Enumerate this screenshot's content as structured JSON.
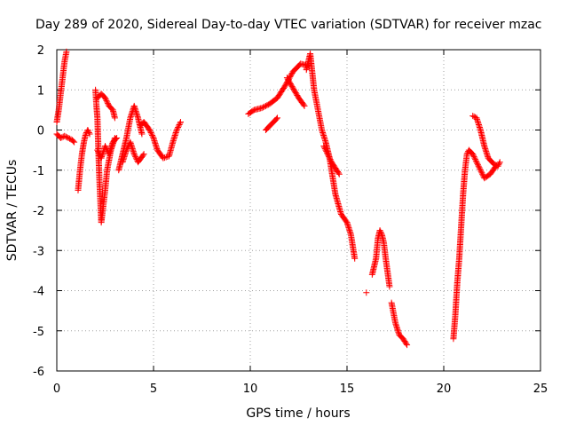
{
  "chart_data": {
    "type": "scatter",
    "title": "Day 289 of 2020, Sidereal Day-to-day VTEC variation (SDTVAR) for receiver mzac",
    "xlabel": "GPS time / hours",
    "ylabel": "SDTVAR / TECUs",
    "xlim": [
      0,
      25
    ],
    "ylim": [
      -6,
      2
    ],
    "x_ticks": [
      0,
      5,
      10,
      15,
      20,
      25
    ],
    "y_ticks": [
      -6,
      -5,
      -4,
      -3,
      -2,
      -1,
      0,
      1,
      2
    ],
    "grid": true,
    "marker": "+",
    "color": "#ff0000",
    "series": [
      {
        "name": "SDTVAR",
        "segments": [
          {
            "x": [
              0.0,
              0.1,
              0.2,
              0.3,
              0.4,
              0.5
            ],
            "y": [
              0.2,
              0.5,
              0.9,
              1.3,
              1.7,
              1.95
            ]
          },
          {
            "x": [
              0.0,
              0.2,
              0.4,
              0.6,
              0.8,
              0.9
            ],
            "y": [
              -0.1,
              -0.2,
              -0.15,
              -0.2,
              -0.25,
              -0.3
            ]
          },
          {
            "x": [
              1.1,
              1.2,
              1.3,
              1.4,
              1.5,
              1.6,
              1.7
            ],
            "y": [
              -1.5,
              -1.0,
              -0.6,
              -0.3,
              -0.1,
              0.0,
              -0.1
            ]
          },
          {
            "x": [
              2.0,
              2.05,
              2.1,
              2.15,
              2.2,
              2.3,
              2.4,
              2.5,
              2.6,
              2.8,
              3.0
            ],
            "y": [
              1.0,
              0.6,
              0.3,
              -0.5,
              -1.2,
              -2.3,
              -1.9,
              -1.5,
              -1.0,
              -0.5,
              -0.2
            ]
          },
          {
            "x": [
              2.1,
              2.3,
              2.5,
              2.7,
              2.9,
              3.0
            ],
            "y": [
              0.8,
              0.9,
              0.8,
              0.6,
              0.5,
              0.3
            ]
          },
          {
            "x": [
              2.1,
              2.3,
              2.5,
              2.7,
              2.9,
              3.1
            ],
            "y": [
              -0.5,
              -0.7,
              -0.4,
              -0.6,
              -0.3,
              -0.2
            ]
          },
          {
            "x": [
              3.2,
              3.4,
              3.6,
              3.8,
              4.0,
              4.2,
              4.4
            ],
            "y": [
              -1.0,
              -0.6,
              -0.2,
              0.3,
              0.6,
              0.3,
              -0.1
            ]
          },
          {
            "x": [
              3.4,
              3.6,
              3.8,
              4.0,
              4.2,
              4.5
            ],
            "y": [
              -0.8,
              -0.5,
              -0.3,
              -0.6,
              -0.8,
              -0.6
            ]
          },
          {
            "x": [
              4.3,
              4.5,
              4.8,
              5.0,
              5.2,
              5.5,
              5.8,
              6.0,
              6.2,
              6.4
            ],
            "y": [
              0.1,
              0.2,
              0.0,
              -0.2,
              -0.5,
              -0.7,
              -0.65,
              -0.3,
              0.0,
              0.2
            ]
          },
          {
            "x": [
              9.9,
              10.2,
              10.6,
              11.0,
              11.4,
              11.8,
              12.2,
              12.6,
              13.0
            ],
            "y": [
              0.4,
              0.5,
              0.55,
              0.65,
              0.8,
              1.1,
              1.45,
              1.65,
              1.6
            ]
          },
          {
            "x": [
              10.8,
              11.0,
              11.2,
              11.4
            ],
            "y": [
              0.0,
              0.1,
              0.2,
              0.3
            ]
          },
          {
            "x": [
              11.9,
              12.2,
              12.5,
              12.8
            ],
            "y": [
              1.3,
              1.05,
              0.8,
              0.6
            ]
          },
          {
            "x": [
              12.9,
              13.1,
              13.3,
              13.5,
              13.7,
              13.9,
              14.1,
              14.4,
              14.7,
              15.0,
              15.2,
              15.4
            ],
            "y": [
              1.5,
              1.9,
              1.0,
              0.5,
              0.0,
              -0.3,
              -0.7,
              -1.6,
              -2.1,
              -2.3,
              -2.6,
              -3.2
            ]
          },
          {
            "x": [
              13.8,
              14.0,
              14.2,
              14.4,
              14.6
            ],
            "y": [
              -0.4,
              -0.6,
              -0.8,
              -0.95,
              -1.1
            ]
          },
          {
            "x": [
              16.0
            ],
            "y": [
              -4.05
            ]
          },
          {
            "x": [
              16.3,
              16.5,
              16.6,
              16.7,
              16.8,
              16.9,
              17.0,
              17.2
            ],
            "y": [
              -3.6,
              -3.2,
              -2.7,
              -2.5,
              -2.6,
              -2.8,
              -3.2,
              -3.9
            ]
          },
          {
            "x": [
              17.3,
              17.5,
              17.7,
              17.9,
              18.1
            ],
            "y": [
              -4.3,
              -4.8,
              -5.1,
              -5.2,
              -5.35
            ]
          },
          {
            "x": [
              20.5,
              20.6,
              20.7,
              20.8,
              20.9,
              21.0,
              21.1,
              21.2,
              21.3,
              21.5,
              21.8,
              22.1,
              22.4,
              22.7
            ],
            "y": [
              -5.2,
              -4.6,
              -3.8,
              -3.2,
              -2.4,
              -1.6,
              -1.0,
              -0.6,
              -0.5,
              -0.6,
              -0.9,
              -1.2,
              -1.1,
              -0.9
            ]
          },
          {
            "x": [
              21.5,
              21.7,
              21.9,
              22.1,
              22.3,
              22.6,
              22.8,
              22.9
            ],
            "y": [
              0.35,
              0.3,
              0.0,
              -0.4,
              -0.7,
              -0.85,
              -0.9,
              -0.8
            ]
          }
        ]
      }
    ]
  }
}
